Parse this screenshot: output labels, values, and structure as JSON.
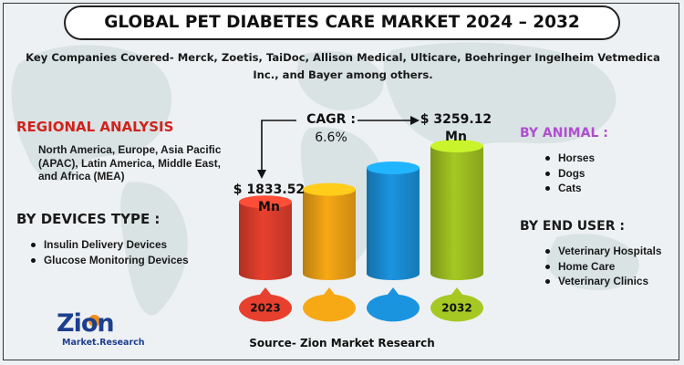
{
  "title": "GLOBAL PET DIABETES CARE MARKET 2024 – 2032",
  "companies": "Key Companies Covered- Merck, Zoetis, TaiDoc, Allison Medical, Ulticare, Boehringer Ingelheim Vetmedica Inc., and Bayer among others.",
  "regional": {
    "heading": "REGIONAL ANALYSIS",
    "text": "North America, Europe, Asia Pacific (APAC), Latin America, Middle East, and Africa (MEA)"
  },
  "devices": {
    "heading": "BY DEVICES TYPE :",
    "items": [
      "Insulin Delivery Devices",
      "Glucose Monitoring Devices"
    ]
  },
  "animal": {
    "heading": "BY ANIMAL :",
    "items": [
      "Horses",
      "Dogs",
      "Cats"
    ]
  },
  "end_user": {
    "heading": "BY END USER :",
    "items": [
      "Veterinary Hospitals",
      "Home Care",
      "Veterinary Clinics"
    ]
  },
  "cagr": {
    "label": "CAGR :",
    "value": "6.6%"
  },
  "start_value": {
    "line1": "$ 1833.52",
    "line2": "Mn"
  },
  "end_value": {
    "line1": "$ 3259.12",
    "line2": "Mn"
  },
  "source": "Source- Zion Market Research",
  "logo": {
    "main": "Zion",
    "sub": "Market.Research"
  },
  "chart_data": {
    "type": "bar",
    "title": "GLOBAL PET DIABETES CARE MARKET 2024 – 2032",
    "categories": [
      "2023",
      "",
      "",
      "2032"
    ],
    "values": [
      1833.52,
      2150,
      2700,
      3259.12
    ],
    "colors": [
      "#e8402e",
      "#f7a815",
      "#1b94df",
      "#a5c823"
    ],
    "unit": "USD Mn",
    "labeled_points": [
      {
        "category": "2023",
        "value": 1833.52
      },
      {
        "category": "2032",
        "value": 3259.12
      }
    ],
    "cagr": "6.6%",
    "ylim": [
      0,
      3259.12
    ],
    "note": "middle bars are illustrative, unlabeled"
  }
}
